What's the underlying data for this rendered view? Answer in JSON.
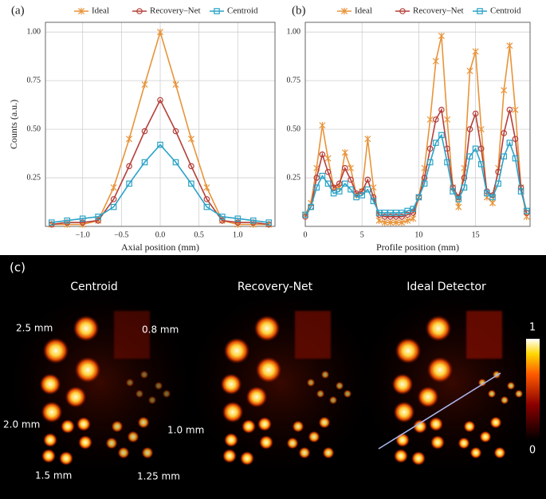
{
  "chart_data": [
    {
      "type": "line",
      "label": "(a)",
      "xlabel": "Axial position (mm)",
      "ylabel": "Counts (a.u.)",
      "x": [
        -1.4,
        -1.2,
        -1.0,
        -0.8,
        -0.6,
        -0.4,
        -0.2,
        0,
        0.2,
        0.4,
        0.6,
        0.8,
        1.0,
        1.2,
        1.4
      ],
      "series": [
        {
          "name": "Ideal",
          "color": "#e8943a",
          "marker": "cross",
          "values": [
            0.01,
            0.01,
            0.01,
            0.03,
            0.2,
            0.45,
            0.73,
            1.0,
            0.73,
            0.45,
            0.2,
            0.03,
            0.01,
            0.01,
            0.01
          ]
        },
        {
          "name": "Recovery–Net",
          "color": "#b5403a",
          "marker": "circle",
          "values": [
            0.01,
            0.02,
            0.02,
            0.03,
            0.14,
            0.31,
            0.49,
            0.65,
            0.49,
            0.31,
            0.14,
            0.03,
            0.02,
            0.02,
            0.01
          ]
        },
        {
          "name": "Centroid",
          "color": "#2aa3c8",
          "marker": "square",
          "values": [
            0.02,
            0.03,
            0.04,
            0.05,
            0.1,
            0.22,
            0.33,
            0.42,
            0.33,
            0.22,
            0.1,
            0.05,
            0.04,
            0.03,
            0.02
          ]
        }
      ],
      "xlim": [
        -1.48,
        1.48
      ],
      "xticks": [
        {
          "value": -1.0,
          "label": "−1.0"
        },
        {
          "value": -0.5,
          "label": "−0.5"
        },
        {
          "value": 0,
          "label": "0.0"
        },
        {
          "value": 0.5,
          "label": "0.5"
        },
        {
          "value": 1.0,
          "label": "1.0"
        }
      ],
      "ylim": [
        0,
        1.05
      ],
      "yticks": [
        0.25,
        {
          "value": 0.5,
          "label": "0.50"
        },
        0.75,
        {
          "value": 1.0,
          "label": "1.00"
        }
      ],
      "grid": true
    },
    {
      "type": "line",
      "label": "(b)",
      "xlabel": "Profile position (mm)",
      "x": [
        0,
        0.5,
        1,
        1.5,
        2,
        2.5,
        3,
        3.5,
        4,
        4.5,
        5,
        5.5,
        6,
        6.5,
        7,
        7.5,
        8,
        8.5,
        9,
        9.5,
        10,
        10.5,
        11,
        11.5,
        12,
        12.5,
        13,
        13.5,
        14,
        14.5,
        15,
        15.5,
        16,
        16.5,
        17,
        17.5,
        18,
        18.5,
        19,
        19.5
      ],
      "series": [
        {
          "name": "Ideal",
          "color": "#e8943a",
          "marker": "cross",
          "values": [
            0.06,
            0.12,
            0.3,
            0.52,
            0.35,
            0.2,
            0.2,
            0.38,
            0.3,
            0.16,
            0.18,
            0.45,
            0.2,
            0.03,
            0.02,
            0.02,
            0.02,
            0.02,
            0.03,
            0.04,
            0.15,
            0.3,
            0.55,
            0.85,
            0.98,
            0.55,
            0.2,
            0.1,
            0.3,
            0.8,
            0.9,
            0.5,
            0.15,
            0.12,
            0.3,
            0.7,
            0.93,
            0.6,
            0.2,
            0.05
          ]
        },
        {
          "name": "Recovery–Net",
          "color": "#b5403a",
          "marker": "circle",
          "values": [
            0.05,
            0.1,
            0.25,
            0.37,
            0.28,
            0.2,
            0.22,
            0.3,
            0.24,
            0.17,
            0.18,
            0.24,
            0.15,
            0.06,
            0.05,
            0.05,
            0.05,
            0.05,
            0.06,
            0.07,
            0.15,
            0.25,
            0.4,
            0.55,
            0.6,
            0.4,
            0.2,
            0.15,
            0.25,
            0.5,
            0.58,
            0.4,
            0.18,
            0.16,
            0.28,
            0.48,
            0.6,
            0.45,
            0.2,
            0.07
          ]
        },
        {
          "name": "Centroid",
          "color": "#2aa3c8",
          "marker": "square",
          "values": [
            0.06,
            0.1,
            0.2,
            0.26,
            0.22,
            0.17,
            0.18,
            0.22,
            0.19,
            0.15,
            0.16,
            0.19,
            0.13,
            0.07,
            0.07,
            0.07,
            0.07,
            0.07,
            0.08,
            0.09,
            0.15,
            0.22,
            0.33,
            0.43,
            0.47,
            0.33,
            0.18,
            0.14,
            0.2,
            0.36,
            0.4,
            0.32,
            0.17,
            0.15,
            0.22,
            0.36,
            0.43,
            0.35,
            0.18,
            0.08
          ]
        }
      ],
      "xlim": [
        0,
        19.8
      ],
      "xticks": [
        0,
        5,
        10,
        15
      ],
      "ylim": [
        0,
        1.05
      ],
      "yticks": [
        0.25,
        {
          "value": 0.5,
          "label": "0.50"
        },
        0.75,
        {
          "value": 1.0,
          "label": "1.00"
        }
      ],
      "grid": true
    }
  ],
  "image_panel": {
    "label": "(c)",
    "titles": [
      "Centroid",
      "Recovery-Net",
      "Ideal Detector"
    ],
    "size_labels": [
      "2.5 mm",
      "0.8 mm",
      "2.0 mm",
      "1.0 mm",
      "1.5 mm",
      "1.25 mm"
    ],
    "colorbar": {
      "ticks": [
        1,
        0
      ],
      "lim": [
        0,
        1
      ]
    }
  }
}
